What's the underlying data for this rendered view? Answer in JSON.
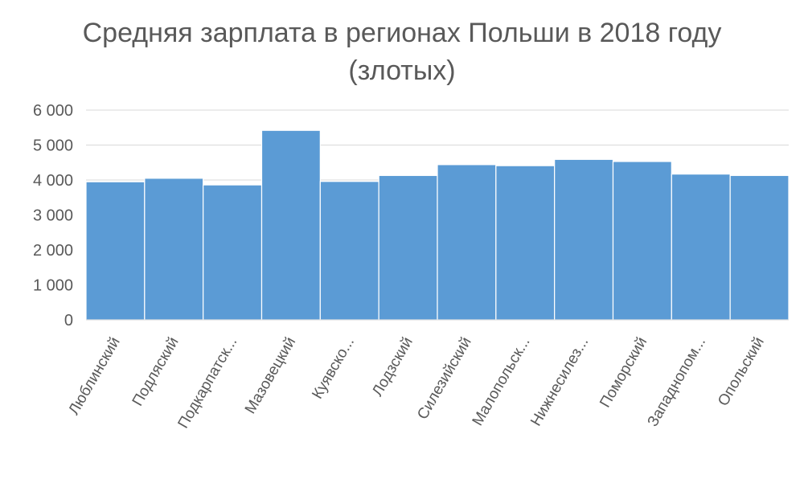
{
  "chart_data": {
    "type": "bar",
    "title_line1": "Средняя зарплата в регионах Польши в 2018 году",
    "title_line2": "(злотых)",
    "categories": [
      "Люблинский",
      "Подляский",
      "Подкарпатск...",
      "Мазовецкий",
      "Куявско...",
      "Лодзский",
      "Силезийский",
      "Малопольск...",
      "Нижнесилез...",
      "Поморский",
      "Западнопом...",
      "Опольский"
    ],
    "values": [
      3950,
      4050,
      3860,
      5420,
      3960,
      4130,
      4440,
      4410,
      4590,
      4530,
      4170,
      4130
    ],
    "ylim": [
      0,
      6000
    ],
    "yticks": [
      0,
      1000,
      2000,
      3000,
      4000,
      5000,
      6000
    ],
    "ytick_labels": [
      "0",
      "1 000",
      "2 000",
      "3 000",
      "4 000",
      "5 000",
      "6 000"
    ],
    "grid": true,
    "bar_color": "#5b9bd5",
    "grid_color": "#d9d9d9"
  }
}
